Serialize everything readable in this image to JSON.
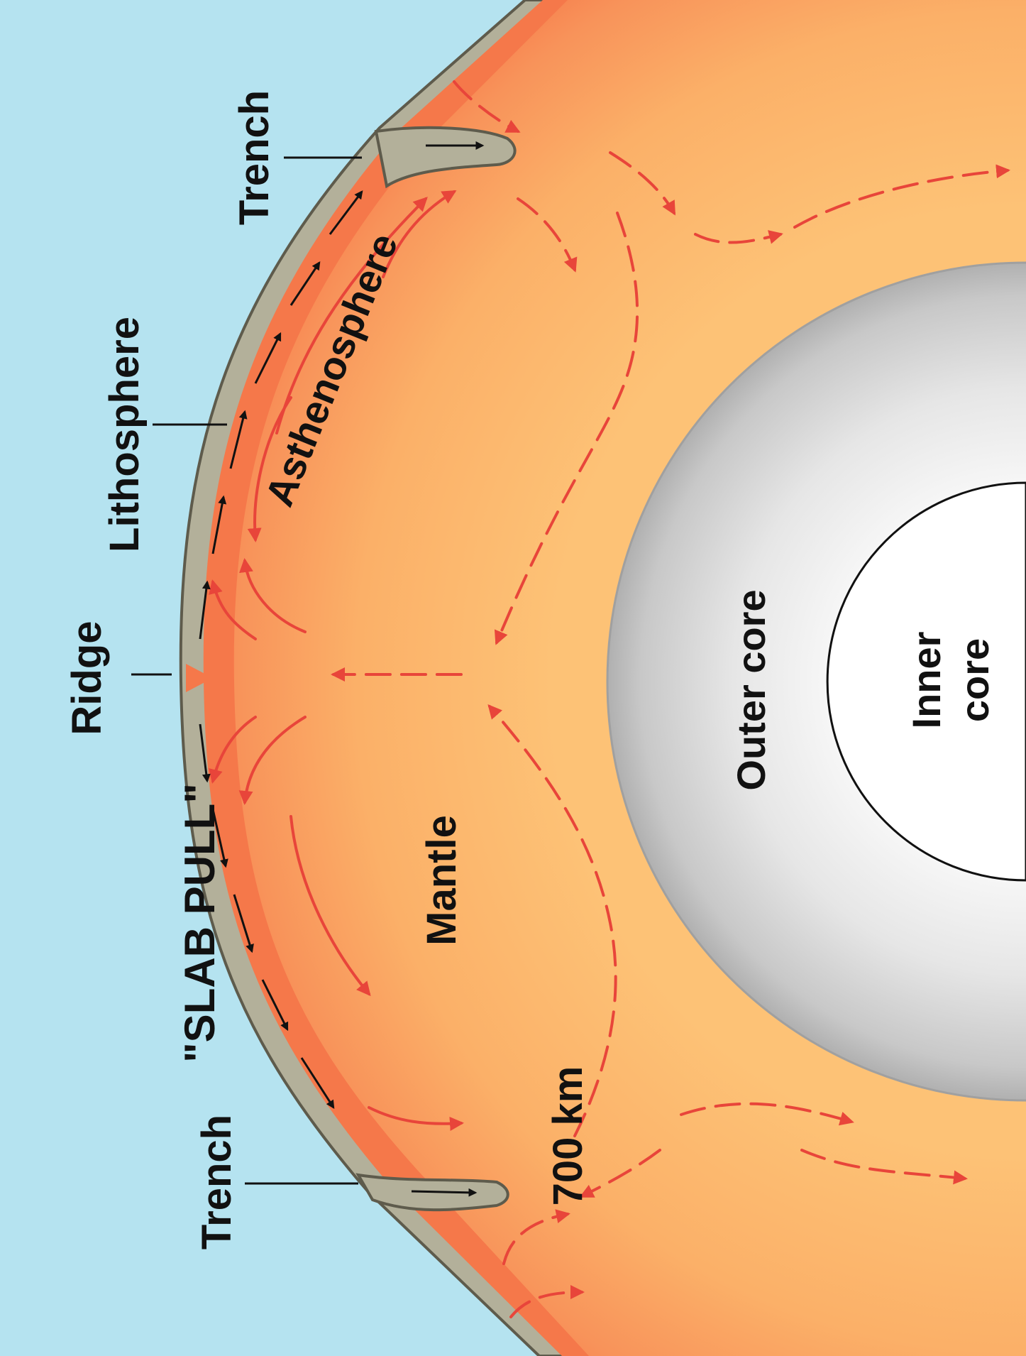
{
  "labels": {
    "trench_top": "Trench",
    "lithosphere": "Lithosphere",
    "ridge": "Ridge",
    "slab_pull": "\"SLAB PULL\"",
    "trench_bottom": "Trench",
    "asthenosphere": "Asthenosphere",
    "mantle": "Mantle",
    "depth": "700 km",
    "outer_core": "Outer core",
    "inner_core_line1": "Inner",
    "inner_core_line2": "core"
  },
  "colors": {
    "ocean": "#b5e3f0",
    "lithosphere": "#b3b09a",
    "lithosphere_outline": "#5e5b4c",
    "asthenosphere": "#f5784a",
    "mantle_outer": "#f8935a",
    "mantle_inner": "#fdc276",
    "outer_core_edge": "#b8b8b8",
    "outer_core_center": "#f4f4f4",
    "inner_core": "#ffffff",
    "convection_arrows": "#e8453a"
  }
}
